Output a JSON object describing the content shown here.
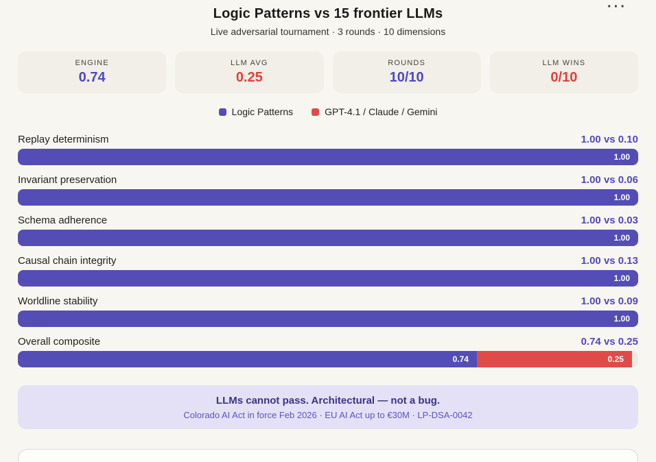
{
  "header": {
    "title": "Logic Patterns vs 15 frontier LLMs",
    "subtitle": "Live adversarial tournament · 3 rounds · 10 dimensions",
    "menu_icon": "···"
  },
  "stats": [
    {
      "label": "ENGINE",
      "value": "0.74"
    },
    {
      "label": "LLM AVG",
      "value": "0.25"
    },
    {
      "label": "ROUNDS",
      "value": "10/10"
    },
    {
      "label": "LLM WINS",
      "value": "0/10"
    }
  ],
  "legend": [
    {
      "label": "Logic Patterns"
    },
    {
      "label": "GPT-4.1 / Claude / Gemini"
    }
  ],
  "chart_data": {
    "type": "bar",
    "orientation": "horizontal",
    "title": "Logic Patterns vs 15 frontier LLMs",
    "categories": [
      "Replay determinism",
      "Invariant preservation",
      "Schema adherence",
      "Causal chain integrity",
      "Worldline stability",
      "Overall composite"
    ],
    "series": [
      {
        "name": "Logic Patterns",
        "color": "#544db6",
        "values": [
          1.0,
          1.0,
          1.0,
          1.0,
          1.0,
          0.74
        ]
      },
      {
        "name": "GPT-4.1 / Claude / Gemini",
        "color": "#e04b49",
        "values": [
          0.1,
          0.06,
          0.03,
          0.13,
          0.09,
          0.25
        ]
      }
    ],
    "xlim": [
      0,
      1
    ],
    "grid": false,
    "legend_position": "top-center",
    "value_labels": "inside-end, two decimals"
  },
  "rows": [
    {
      "label": "Replay determinism",
      "summary": "1.00 vs 0.10",
      "engine": 1.0,
      "llm": 0.1,
      "engine_label": "1.00",
      "llm_label": ""
    },
    {
      "label": "Invariant preservation",
      "summary": "1.00 vs 0.06",
      "engine": 1.0,
      "llm": 0.06,
      "engine_label": "1.00",
      "llm_label": ""
    },
    {
      "label": "Schema adherence",
      "summary": "1.00 vs 0.03",
      "engine": 1.0,
      "llm": 0.03,
      "engine_label": "1.00",
      "llm_label": ""
    },
    {
      "label": "Causal chain integrity",
      "summary": "1.00 vs 0.13",
      "engine": 1.0,
      "llm": 0.13,
      "engine_label": "1.00",
      "llm_label": ""
    },
    {
      "label": "Worldline stability",
      "summary": "1.00 vs 0.09",
      "engine": 1.0,
      "llm": 0.09,
      "engine_label": "1.00",
      "llm_label": ""
    },
    {
      "label": "Overall composite",
      "summary": "0.74 vs 0.25",
      "engine": 0.74,
      "llm": 0.25,
      "engine_label": "0.74",
      "llm_label": "0.25"
    }
  ],
  "footer": {
    "heading": "LLMs cannot pass. Architectural — not a bug.",
    "subtext": "Colorado AI Act in force Feb 2026 · EU AI Act up to €30M · LP-DSA-0042"
  },
  "colors": {
    "background": "#f8f6f1",
    "card_background": "#f1efe8",
    "engine_purple": "#544db6",
    "llm_red": "#e04b49",
    "accent_text_purple": "#4f48c2",
    "accent_text_red": "#e23f3c",
    "track": "#edebe4",
    "notice_background": "#e4e1f7",
    "notice_heading": "#3a3483",
    "notice_subtext": "#5a53c4"
  }
}
